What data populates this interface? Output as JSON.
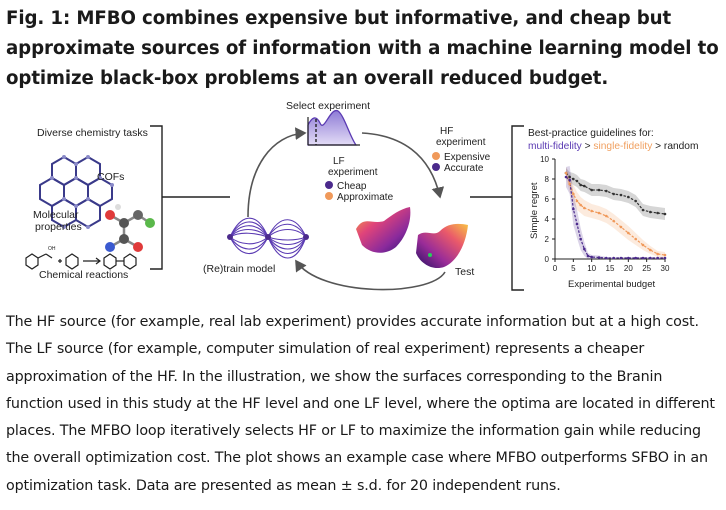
{
  "title": "Fig. 1: MFBO combines expensive but informative, and cheap but approximate sources of information with a machine learning model to optimize black-box problems at an overall reduced budget.",
  "panel_left": {
    "header": "Diverse chemistry tasks",
    "items": [
      "COFs",
      "Molecular properties",
      "Chemical reactions"
    ]
  },
  "loop": {
    "select_experiment": "Select experiment",
    "lf_label": "LF experiment",
    "lf_legend": [
      "Cheap",
      "Approximate"
    ],
    "hf_label": "HF experiment",
    "hf_legend": [
      "Expensive",
      "Accurate"
    ],
    "retrain": "(Re)train model",
    "test": "Test"
  },
  "colors": {
    "purple": "#4b2a8c",
    "orange": "#f0995a",
    "gray": "#333333",
    "violet_text": "#5b3bb3",
    "orange_text": "#f0a060"
  },
  "guidelines": {
    "line1": "Best-practice guidelines for:",
    "multi": "multi-fidelity",
    "sep1": " > ",
    "single": "single-fidelity",
    "sep2": " > ",
    "random": "random"
  },
  "chart_data": {
    "type": "line",
    "xlabel": "Experimental budget",
    "ylabel": "Simple regret",
    "xlim": [
      0,
      30
    ],
    "ylim": [
      0,
      10
    ],
    "xticks": [
      0,
      5,
      10,
      15,
      20,
      25,
      30
    ],
    "yticks": [
      0,
      2,
      4,
      6,
      8,
      10
    ],
    "series": [
      {
        "name": "multi-fidelity",
        "color": "#4b2a8c",
        "x": [
          3,
          4,
          5,
          6,
          7,
          8,
          9,
          10,
          12,
          14,
          16,
          18,
          20,
          22,
          24,
          26,
          28,
          30
        ],
        "y": [
          8.2,
          7.9,
          5.0,
          3.5,
          2.0,
          1.0,
          0.3,
          0.2,
          0.15,
          0.1,
          0.1,
          0.1,
          0.1,
          0.1,
          0.1,
          0.1,
          0.1,
          0.1
        ],
        "band": [
          1.0,
          1.4,
          1.6,
          1.4,
          1.1,
          0.7,
          0.3,
          0.2,
          0.2,
          0.1,
          0.1,
          0.1,
          0.1,
          0.1,
          0.1,
          0.1,
          0.1,
          0.1
        ]
      },
      {
        "name": "single-fidelity",
        "color": "#f0995a",
        "x": [
          3,
          4,
          5,
          6,
          7,
          8,
          10,
          12,
          14,
          16,
          18,
          20,
          22,
          24,
          26,
          28,
          30
        ],
        "y": [
          8.6,
          7.5,
          6.5,
          5.8,
          5.4,
          5.1,
          4.8,
          4.6,
          4.3,
          3.8,
          3.2,
          2.6,
          2.0,
          1.4,
          0.9,
          0.5,
          0.4
        ],
        "band": [
          0.6,
          0.8,
          0.9,
          0.9,
          0.8,
          0.8,
          0.7,
          0.7,
          0.7,
          0.7,
          0.7,
          0.7,
          0.6,
          0.5,
          0.4,
          0.3,
          0.3
        ]
      },
      {
        "name": "random",
        "color": "#333333",
        "x": [
          3,
          4,
          5,
          6,
          7,
          8,
          10,
          12,
          14,
          16,
          18,
          20,
          22,
          24,
          26,
          28,
          30
        ],
        "y": [
          8.6,
          8.2,
          8.0,
          7.8,
          7.4,
          7.3,
          6.9,
          6.9,
          6.8,
          6.5,
          6.4,
          6.2,
          5.8,
          4.9,
          4.7,
          4.6,
          4.5
        ],
        "band": [
          0.5,
          0.5,
          0.6,
          0.6,
          0.6,
          0.6,
          0.6,
          0.6,
          0.6,
          0.6,
          0.6,
          0.6,
          0.6,
          0.6,
          0.6,
          0.6,
          0.6
        ]
      }
    ]
  },
  "caption": "The HF source (for example, real lab experiment) provides accurate information but at a high cost. The LF source (for example, computer simulation of real experiment) represents a cheaper approximation of the HF. In the illustration, we show the surfaces corresponding to the Branin function used in this study at the HF level and one LF level, where the optima are located in different places. The MFBO loop iteratively selects HF or LF to maximize the information gain while reducing the overall optimization cost. The plot shows an example case where MFBO outperforms SFBO in an optimization task. Data are presented as mean ± s.d. for 20 independent runs."
}
